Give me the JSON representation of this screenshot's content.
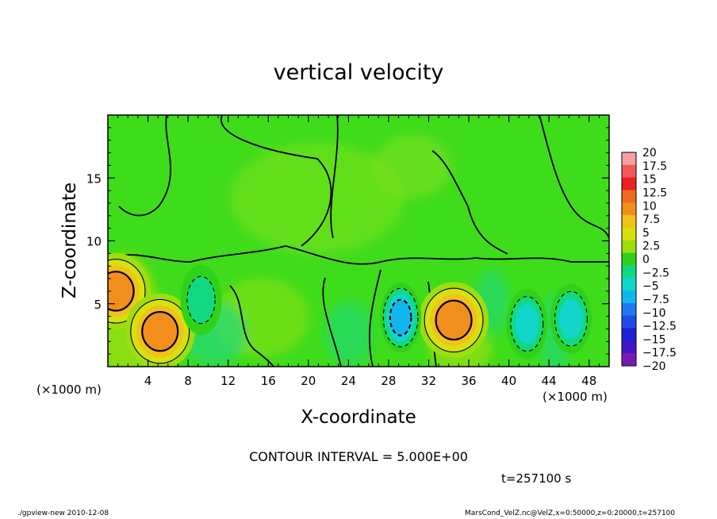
{
  "chart_data": {
    "type": "heatmap",
    "title": "vertical velocity",
    "xlabel": "X-coordinate",
    "ylabel": "Z-coordinate",
    "x_unit": "(×1000 m)",
    "xlim": [
      0,
      50
    ],
    "ylim": [
      0,
      20
    ],
    "x_ticks": [
      4,
      8,
      12,
      16,
      20,
      24,
      28,
      32,
      36,
      40,
      44,
      48
    ],
    "y_ticks": [
      5,
      10,
      15
    ],
    "colorbar": {
      "levels": [
        "20",
        "17.5",
        "15",
        "12.5",
        "10",
        "7.5",
        "5",
        "2.5",
        "0",
        "-2.5",
        "-5",
        "-7.5",
        "-10",
        "-12.5",
        "-15",
        "-17.5",
        "-20"
      ],
      "colors": [
        "#f8a0a0",
        "#f25858",
        "#ea2020",
        "#ef6a1c",
        "#f28f1c",
        "#f0c21a",
        "#d8e010",
        "#9cde10",
        "#2ed21a",
        "#12d882",
        "#12d6cc",
        "#12b6ee",
        "#1e7af0",
        "#1f4ce6",
        "#2020d8",
        "#4216c6",
        "#7a1ab6"
      ]
    },
    "features": [
      {
        "type": "updraft",
        "x": 0.8,
        "z": 6.0,
        "peak": 10
      },
      {
        "type": "updraft",
        "x": 5.2,
        "z": 2.8,
        "peak": 10
      },
      {
        "type": "updraft",
        "x": 34.5,
        "z": 3.7,
        "peak": 10
      },
      {
        "type": "downdraft",
        "x": 29.2,
        "z": 3.9,
        "peak": -10
      },
      {
        "type": "downdraft",
        "x": 41.8,
        "z": 3.4,
        "peak": -7.5
      },
      {
        "type": "downdraft",
        "x": 46.2,
        "z": 3.8,
        "peak": -7.5
      },
      {
        "type": "downdraft",
        "x": 9.3,
        "z": 5.3,
        "peak": -5
      }
    ],
    "contour_interval": "CONTOUR INTERVAL = 5.000E+00",
    "time": "t=257100 s"
  },
  "footer": {
    "left": "./gpview-new  2010-12-08",
    "right": "MarsCond_VelZ.nc@VelZ,x=0:50000,z=0:20000,t=257100"
  }
}
